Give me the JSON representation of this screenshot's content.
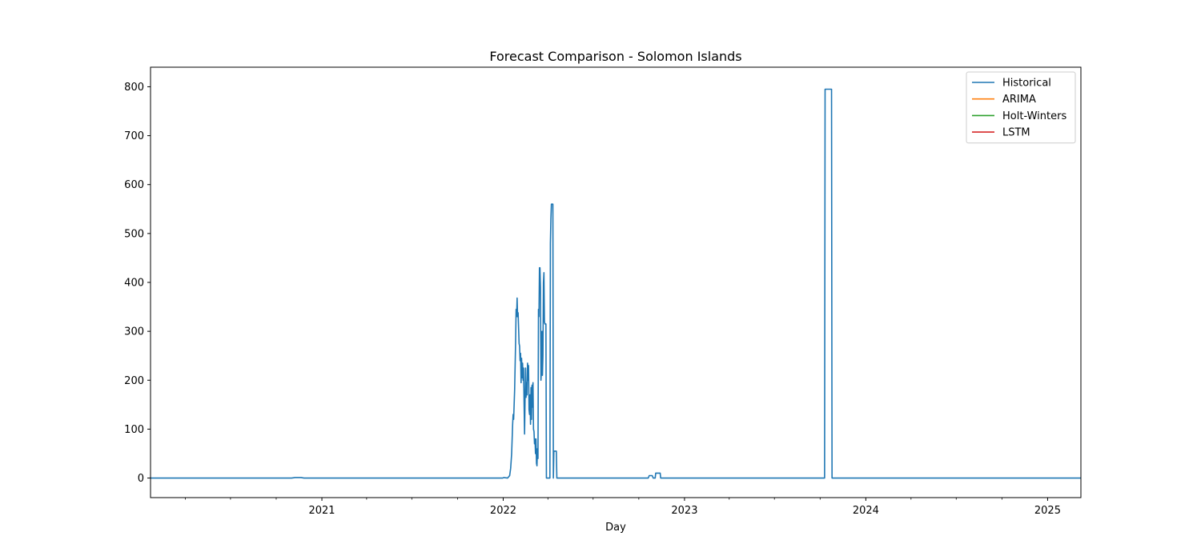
{
  "chart_data": {
    "type": "line",
    "title": "Forecast Comparison - Solomon Islands",
    "xlabel": "Day",
    "ylabel": "",
    "xlim": [
      "2020-01-22",
      "2025-03-09"
    ],
    "ylim": [
      -40,
      840
    ],
    "x_ticks": [
      {
        "date": "2021-01-01",
        "label": "2021"
      },
      {
        "date": "2022-01-01",
        "label": "2022"
      },
      {
        "date": "2023-01-01",
        "label": "2023"
      },
      {
        "date": "2024-01-01",
        "label": "2024"
      },
      {
        "date": "2025-01-01",
        "label": "2025"
      }
    ],
    "y_ticks": [
      0,
      100,
      200,
      300,
      400,
      500,
      600,
      700,
      800
    ],
    "grid": false,
    "legend_position": "top-right",
    "series": [
      {
        "name": "Historical",
        "color": "#1f77b4",
        "points": [
          [
            "2020-01-22",
            0
          ],
          [
            "2020-11-01",
            0
          ],
          [
            "2020-11-08",
            1
          ],
          [
            "2020-11-20",
            1
          ],
          [
            "2020-11-26",
            0
          ],
          [
            "2021-12-31",
            0
          ],
          [
            "2022-01-02",
            1
          ],
          [
            "2022-01-10",
            0
          ],
          [
            "2022-01-14",
            5
          ],
          [
            "2022-01-16",
            20
          ],
          [
            "2022-01-18",
            50
          ],
          [
            "2022-01-20",
            110
          ],
          [
            "2022-01-21",
            130
          ],
          [
            "2022-01-22",
            120
          ],
          [
            "2022-01-24",
            180
          ],
          [
            "2022-01-26",
            280
          ],
          [
            "2022-01-27",
            345
          ],
          [
            "2022-01-28",
            330
          ],
          [
            "2022-01-29",
            368
          ],
          [
            "2022-01-30",
            330
          ],
          [
            "2022-01-31",
            338
          ],
          [
            "2022-02-02",
            275
          ],
          [
            "2022-02-03",
            270
          ],
          [
            "2022-02-04",
            240
          ],
          [
            "2022-02-05",
            255
          ],
          [
            "2022-02-06",
            195
          ],
          [
            "2022-02-07",
            245
          ],
          [
            "2022-02-08",
            205
          ],
          [
            "2022-02-09",
            235
          ],
          [
            "2022-02-10",
            200
          ],
          [
            "2022-02-11",
            225
          ],
          [
            "2022-02-12",
            155
          ],
          [
            "2022-02-13",
            90
          ],
          [
            "2022-02-14",
            160
          ],
          [
            "2022-02-15",
            225
          ],
          [
            "2022-02-16",
            165
          ],
          [
            "2022-02-17",
            195
          ],
          [
            "2022-02-18",
            170
          ],
          [
            "2022-02-19",
            235
          ],
          [
            "2022-02-20",
            200
          ],
          [
            "2022-02-21",
            230
          ],
          [
            "2022-02-22",
            140
          ],
          [
            "2022-02-23",
            130
          ],
          [
            "2022-02-24",
            170
          ],
          [
            "2022-02-25",
            110
          ],
          [
            "2022-02-26",
            185
          ],
          [
            "2022-02-27",
            120
          ],
          [
            "2022-02-28",
            190
          ],
          [
            "2022-03-01",
            145
          ],
          [
            "2022-03-02",
            195
          ],
          [
            "2022-03-03",
            100
          ],
          [
            "2022-03-04",
            95
          ],
          [
            "2022-03-05",
            70
          ],
          [
            "2022-03-06",
            80
          ],
          [
            "2022-03-07",
            50
          ],
          [
            "2022-03-08",
            80
          ],
          [
            "2022-03-09",
            30
          ],
          [
            "2022-03-10",
            25
          ],
          [
            "2022-03-11",
            60
          ],
          [
            "2022-03-12",
            40
          ],
          [
            "2022-03-13",
            345
          ],
          [
            "2022-03-14",
            330
          ],
          [
            "2022-03-15",
            430
          ],
          [
            "2022-03-16",
            430
          ],
          [
            "2022-03-17",
            390
          ],
          [
            "2022-03-18",
            200
          ],
          [
            "2022-03-19",
            220
          ],
          [
            "2022-03-20",
            300
          ],
          [
            "2022-03-21",
            210
          ],
          [
            "2022-03-22",
            250
          ],
          [
            "2022-03-23",
            400
          ],
          [
            "2022-03-24",
            420
          ],
          [
            "2022-03-25",
            320
          ],
          [
            "2022-03-26",
            315
          ],
          [
            "2022-03-28",
            315
          ],
          [
            "2022-03-29",
            0
          ],
          [
            "2022-04-05",
            0
          ],
          [
            "2022-04-06",
            480
          ],
          [
            "2022-04-07",
            530
          ],
          [
            "2022-04-08",
            560
          ],
          [
            "2022-04-11",
            560
          ],
          [
            "2022-04-12",
            0
          ],
          [
            "2022-04-13",
            55
          ],
          [
            "2022-04-18",
            55
          ],
          [
            "2022-04-19",
            0
          ],
          [
            "2022-10-20",
            0
          ],
          [
            "2022-10-22",
            5
          ],
          [
            "2022-10-28",
            5
          ],
          [
            "2022-10-30",
            0
          ],
          [
            "2022-11-03",
            0
          ],
          [
            "2022-11-04",
            10
          ],
          [
            "2022-11-13",
            10
          ],
          [
            "2022-11-14",
            0
          ],
          [
            "2023-10-10",
            0
          ],
          [
            "2023-10-11",
            795
          ],
          [
            "2023-10-24",
            795
          ],
          [
            "2023-10-25",
            0
          ],
          [
            "2025-03-09",
            0
          ]
        ]
      },
      {
        "name": "ARIMA",
        "color": "#ff7f0e",
        "points": []
      },
      {
        "name": "Holt-Winters",
        "color": "#2ca02c",
        "points": []
      },
      {
        "name": "LSTM",
        "color": "#d62728",
        "points": []
      }
    ]
  }
}
